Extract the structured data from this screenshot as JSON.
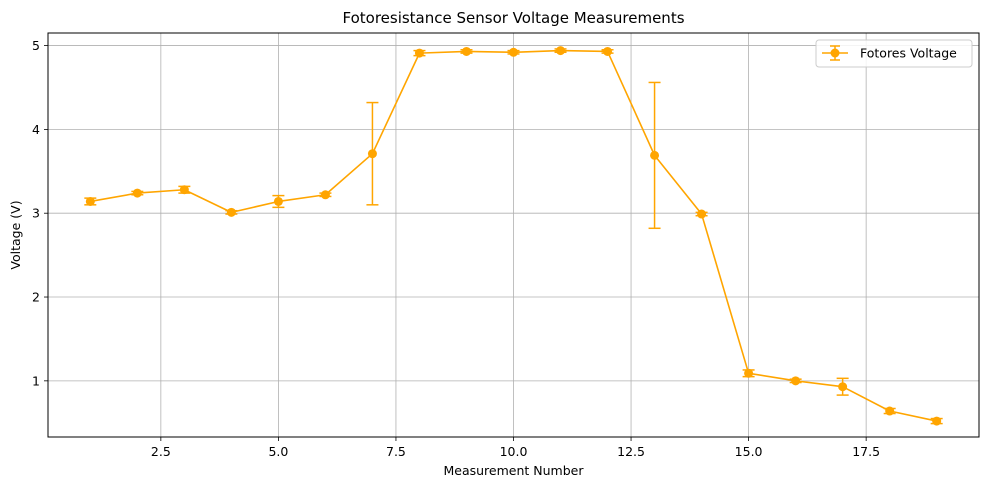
{
  "chart_data": {
    "type": "line",
    "title": "Fotoresistance Sensor Voltage Measurements",
    "xlabel": "Measurement Number",
    "ylabel": "Voltage (V)",
    "xlim": [
      0.1,
      19.9
    ],
    "ylim": [
      0.33,
      5.15
    ],
    "xticks": [
      2.5,
      5.0,
      7.5,
      10.0,
      12.5,
      15.0,
      17.5
    ],
    "xtick_labels": [
      "2.5",
      "5.0",
      "7.5",
      "10.0",
      "12.5",
      "15.0",
      "17.5"
    ],
    "yticks": [
      1,
      2,
      3,
      4,
      5
    ],
    "ytick_labels": [
      "1",
      "2",
      "3",
      "4",
      "5"
    ],
    "grid": true,
    "legend_position": "top-right",
    "color": "#FFA500",
    "series": [
      {
        "name": "Fotores Voltage",
        "x": [
          1,
          2,
          3,
          4,
          5,
          6,
          7,
          8,
          9,
          10,
          11,
          12,
          13,
          14,
          15,
          16,
          17,
          18,
          19
        ],
        "y": [
          3.14,
          3.24,
          3.28,
          3.01,
          3.14,
          3.22,
          3.71,
          4.91,
          4.93,
          4.92,
          4.94,
          4.93,
          3.69,
          2.99,
          1.09,
          1.0,
          0.93,
          0.64,
          0.52
        ],
        "err": [
          0.04,
          0.02,
          0.04,
          0.02,
          0.07,
          0.02,
          0.61,
          0.03,
          0.02,
          0.02,
          0.02,
          0.02,
          0.87,
          0.02,
          0.04,
          0.02,
          0.1,
          0.03,
          0.03
        ]
      }
    ]
  }
}
